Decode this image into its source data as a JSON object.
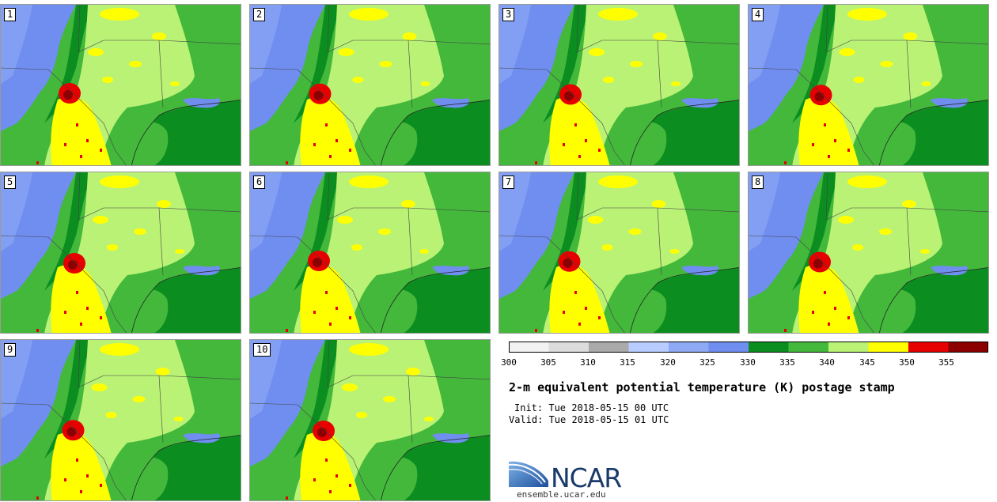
{
  "panels": [
    {
      "label": "1"
    },
    {
      "label": "2"
    },
    {
      "label": "3"
    },
    {
      "label": "4"
    },
    {
      "label": "5"
    },
    {
      "label": "6"
    },
    {
      "label": "7"
    },
    {
      "label": "8"
    },
    {
      "label": "9"
    },
    {
      "label": "10"
    }
  ],
  "colorbar": {
    "ticks": [
      "300",
      "305",
      "310",
      "315",
      "320",
      "325",
      "330",
      "335",
      "340",
      "345",
      "350",
      "355"
    ],
    "colors": [
      "#f2f2f2",
      "#dcdcdc",
      "#aaaaaa",
      "#b9ccff",
      "#8faaf5",
      "#6f8ef0",
      "#0b8e1f",
      "#43b83b",
      "#b9f275",
      "#ffff00",
      "#e60000",
      "#8b0000"
    ]
  },
  "title": "2-m equivalent potential temperature (K) postage stamp",
  "init_text": "Init: Tue 2018-05-15 00 UTC",
  "valid_text": "Valid: Tue 2018-05-15 01 UTC",
  "logo": {
    "name": "NCAR",
    "url_text": "ensemble.ucar.edu"
  }
}
